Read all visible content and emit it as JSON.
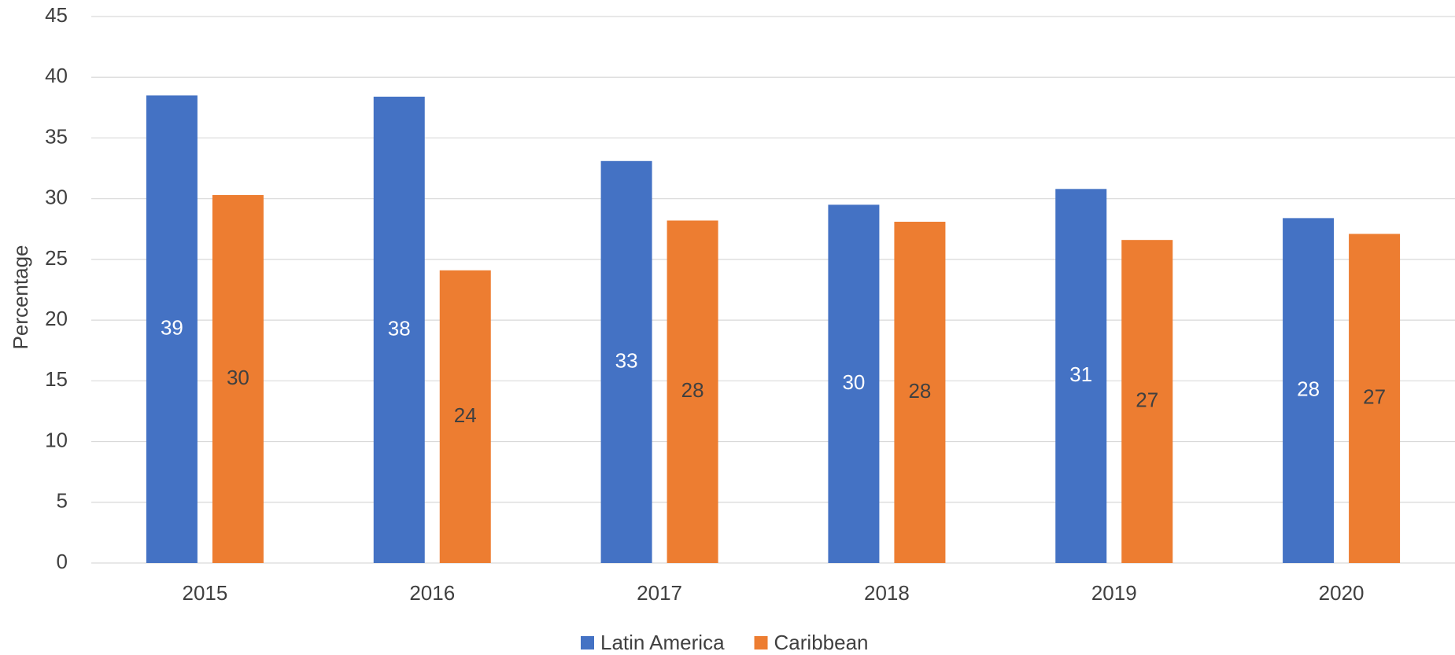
{
  "chart_data": {
    "type": "bar",
    "y_label": "Percentage",
    "categories": [
      "2015",
      "2016",
      "2017",
      "2018",
      "2019",
      "2020"
    ],
    "series": [
      {
        "name": "Latin America",
        "color": "#4472c4",
        "values": [
          38.5,
          38.4,
          33.1,
          29.5,
          30.8,
          28.4
        ],
        "value_labels": [
          "39",
          "38",
          "33",
          "30",
          "31",
          "28"
        ]
      },
      {
        "name": "Caribbean",
        "color": "#ed7d31",
        "values": [
          30.3,
          24.1,
          28.2,
          28.1,
          26.6,
          27.1
        ],
        "value_labels": [
          "30",
          "24",
          "28",
          "28",
          "27",
          "27"
        ]
      }
    ],
    "ylim": [
      0,
      45
    ],
    "yticks": [
      0,
      5,
      10,
      15,
      20,
      25,
      30,
      35,
      40,
      45
    ],
    "grid": true,
    "legend": "bottom"
  }
}
